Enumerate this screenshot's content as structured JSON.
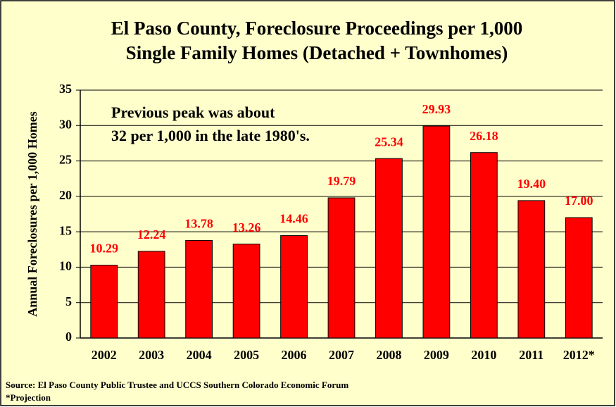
{
  "chart_data": {
    "type": "bar",
    "title": [
      "El Paso County, Foreclosure Proceedings per 1,000",
      "Single Family Homes (Detached + Townhomes)"
    ],
    "ylabel": "Annual Foreclosures per 1,000 Homes",
    "annotation": [
      "Previous peak was about",
      "32 per 1,000 in the late 1980's."
    ],
    "notes": [
      "Source: El Paso County Public Trustee and UCCS Southern Colorado Economic Forum",
      "*Projection"
    ],
    "categories": [
      "2002",
      "2003",
      "2004",
      "2005",
      "2006",
      "2007",
      "2008",
      "2009",
      "2010",
      "2011",
      "2012*"
    ],
    "values": [
      10.29,
      12.24,
      13.78,
      13.26,
      14.46,
      19.79,
      25.34,
      29.93,
      26.18,
      19.4,
      17.0
    ],
    "value_labels": [
      "10.29",
      "12.24",
      "13.78",
      "13.26",
      "14.46",
      "19.79",
      "25.34",
      "29.93",
      "26.18",
      "19.40",
      "17.00"
    ],
    "color": "#ff0000",
    "label_color": "#ff0000",
    "ylim": [
      0,
      35
    ],
    "yticks": [
      0,
      5,
      10,
      15,
      20,
      25,
      30,
      35
    ],
    "grid": true
  }
}
